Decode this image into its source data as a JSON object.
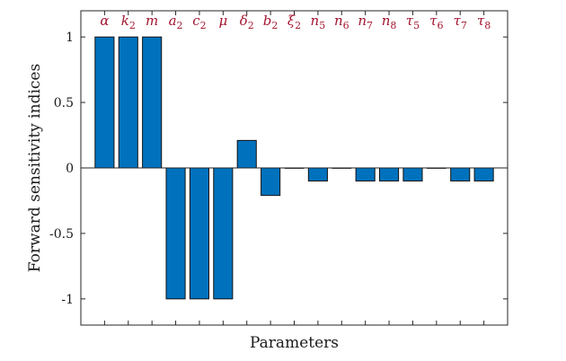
{
  "chart_data": {
    "type": "bar",
    "xlabel": "Parameters",
    "ylabel": "Forward sensitivity indices",
    "ylim": [
      -1.2,
      1.2
    ],
    "yticks": [
      1,
      0.5,
      0,
      -0.5,
      -1
    ],
    "ytick_labels": [
      "1",
      "0.5",
      "0",
      "-0.5",
      "-1"
    ],
    "categories": [
      {
        "base": "α",
        "sub": ""
      },
      {
        "base": "k",
        "sub": "2"
      },
      {
        "base": "m",
        "sub": ""
      },
      {
        "base": "a",
        "sub": "2"
      },
      {
        "base": "c",
        "sub": "2"
      },
      {
        "base": "μ",
        "sub": ""
      },
      {
        "base": "δ",
        "sub": "2"
      },
      {
        "base": "b",
        "sub": "2"
      },
      {
        "base": "ξ",
        "sub": "2"
      },
      {
        "base": "n",
        "sub": "5"
      },
      {
        "base": "n",
        "sub": "6"
      },
      {
        "base": "n",
        "sub": "7"
      },
      {
        "base": "n",
        "sub": "8"
      },
      {
        "base": "τ",
        "sub": "5"
      },
      {
        "base": "τ",
        "sub": "6"
      },
      {
        "base": "τ",
        "sub": "7"
      },
      {
        "base": "τ",
        "sub": "8"
      }
    ],
    "values": [
      1,
      1,
      1,
      -1,
      -1,
      -1,
      0.21,
      -0.21,
      0,
      -0.1,
      0,
      -0.1,
      -0.1,
      -0.1,
      0,
      -0.1,
      -0.1
    ],
    "bar_color": "#0072bd",
    "label_color": "#a2142f",
    "grid": false
  }
}
